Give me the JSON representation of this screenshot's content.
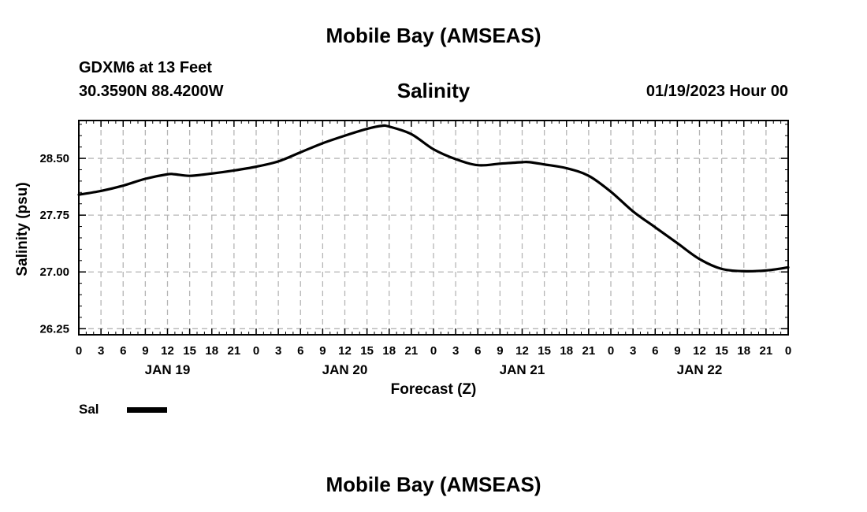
{
  "page": {
    "title": "Mobile Bay (AMSEAS)",
    "station": "GDXM6 at 13 Feet",
    "coordinates": "30.3590N  88.4200W",
    "chart_title": "Salinity",
    "timestamp": "01/19/2023 Hour 00",
    "footer_title": "Mobile Bay (AMSEAS)",
    "legend": {
      "label": "Sal",
      "color": "#000000"
    }
  },
  "chart_data": {
    "type": "line",
    "title": "Salinity",
    "xlabel": "Forecast (Z)",
    "ylabel": "Salinity (psu)",
    "xlim": [
      0,
      96
    ],
    "ylim": [
      26.17,
      29.0
    ],
    "yticks": [
      26.25,
      27.0,
      27.75,
      28.5
    ],
    "ytick_labels": [
      "26.25",
      "27.00",
      "27.75",
      "28.50"
    ],
    "xticks": [
      0,
      3,
      6,
      9,
      12,
      15,
      18,
      21,
      24,
      27,
      30,
      33,
      36,
      39,
      42,
      45,
      48,
      51,
      54,
      57,
      60,
      63,
      66,
      69,
      72,
      75,
      78,
      81,
      84,
      87,
      90,
      93,
      96
    ],
    "xtick_labels": [
      "0",
      "3",
      "6",
      "9",
      "12",
      "15",
      "18",
      "21",
      "0",
      "3",
      "6",
      "9",
      "12",
      "15",
      "18",
      "21",
      "0",
      "3",
      "6",
      "9",
      "12",
      "15",
      "18",
      "21",
      "0",
      "3",
      "6",
      "9",
      "12",
      "15",
      "18",
      "21",
      "0"
    ],
    "day_labels": [
      {
        "x": 12,
        "label": "JAN 19"
      },
      {
        "x": 36,
        "label": "JAN 20"
      },
      {
        "x": 60,
        "label": "JAN 21"
      },
      {
        "x": 84,
        "label": "JAN 22"
      }
    ],
    "grid": true,
    "series": [
      {
        "name": "Sal",
        "color": "#000000",
        "x": [
          0,
          3,
          6,
          9,
          12,
          13,
          15,
          18,
          21,
          24,
          27,
          30,
          33,
          36,
          39,
          41,
          42,
          45,
          48,
          51,
          54,
          57,
          60,
          61,
          63,
          66,
          69,
          72,
          75,
          78,
          81,
          84,
          87,
          90,
          93,
          96
        ],
        "y": [
          28.02,
          28.07,
          28.14,
          28.23,
          28.29,
          28.29,
          28.27,
          28.3,
          28.34,
          28.39,
          28.46,
          28.58,
          28.7,
          28.8,
          28.89,
          28.93,
          28.92,
          28.82,
          28.62,
          28.49,
          28.41,
          28.43,
          28.45,
          28.45,
          28.42,
          28.37,
          28.27,
          28.06,
          27.8,
          27.59,
          27.38,
          27.17,
          27.04,
          27.01,
          27.02,
          27.06
        ]
      }
    ]
  }
}
